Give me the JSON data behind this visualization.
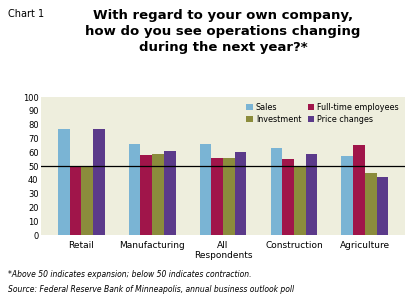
{
  "title": "With regard to your own company,\nhow do you see operations changing\nduring the next year?*",
  "chart_label": "Chart 1",
  "categories": [
    "Retail",
    "Manufacturing",
    "All\nRespondents",
    "Construction",
    "Agriculture"
  ],
  "series": {
    "Sales": [
      77,
      66,
      66,
      63,
      57
    ],
    "Full-time employees": [
      50,
      58,
      56,
      55,
      65
    ],
    "Investment": [
      50,
      59,
      56,
      50,
      45
    ],
    "Price changes": [
      77,
      61,
      60,
      59,
      42
    ]
  },
  "colors": {
    "Sales": "#7ab4d4",
    "Full-time employees": "#a0154a",
    "Investment": "#8b8c3c",
    "Price changes": "#5b3a8a"
  },
  "ylim": [
    0,
    100
  ],
  "yticks": [
    0,
    10,
    20,
    30,
    40,
    50,
    60,
    70,
    80,
    90,
    100
  ],
  "reference_line": 50,
  "background_color": "#eeeedd",
  "footnote1": "*Above 50 indicates expansion; below 50 indicates contraction.",
  "footnote2": "Source: Federal Reserve Bank of Minneapolis, annual business outlook poll"
}
